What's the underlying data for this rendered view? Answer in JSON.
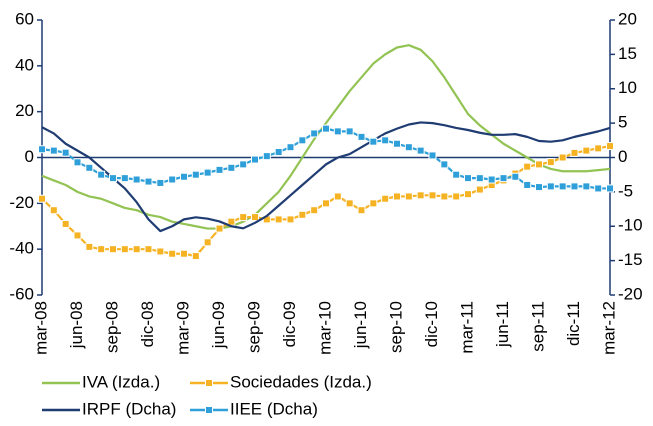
{
  "chart_data": {
    "type": "line",
    "categories": [
      "mar-08",
      null,
      null,
      "jun-08",
      null,
      null,
      "sep-08",
      null,
      null,
      "dic-08",
      null,
      null,
      "mar-09",
      null,
      null,
      "jun-09",
      null,
      null,
      "sep-09",
      null,
      null,
      "dic-09",
      null,
      null,
      "mar-10",
      null,
      null,
      "jun-10",
      null,
      null,
      "sep-10",
      null,
      null,
      "dic-10",
      null,
      null,
      "mar-11",
      null,
      null,
      "jun-11",
      null,
      null,
      "sep-11",
      null,
      null,
      "dic-11",
      null,
      null,
      "mar-12"
    ],
    "ylim": [
      -60,
      60
    ],
    "yticks": [
      -60,
      -40,
      -20,
      0,
      20,
      40,
      60
    ],
    "y2lim": [
      -20,
      20
    ],
    "y2ticks": [
      -20,
      -15,
      -10,
      -5,
      0,
      5,
      10,
      15,
      20
    ],
    "series": [
      {
        "name": "IVA (Izda.)",
        "color": "#92c353",
        "marker": "none",
        "values": [
          -8,
          -10,
          -12,
          -15,
          -17,
          -18,
          -20,
          -22,
          -23,
          -25,
          -26,
          -28,
          -29,
          -30,
          -31,
          -31,
          -30,
          -28,
          -25,
          -20,
          -15,
          -8,
          0,
          8,
          15,
          22,
          29,
          35,
          41,
          45,
          48,
          49,
          47,
          42,
          35,
          27,
          19,
          14,
          10,
          6,
          3,
          0,
          -3,
          -5,
          -6,
          -6,
          -6,
          -5.5,
          -5
        ]
      },
      {
        "name": "Sociedades (Izda.)",
        "color": "#f5b324",
        "marker": "square",
        "values": [
          -18,
          -23,
          -29,
          -34,
          -39,
          -40,
          -40,
          -40,
          -40,
          -40,
          -41,
          -42,
          -42,
          -43,
          -37,
          -31,
          -28,
          -26,
          -26,
          -27,
          -27,
          -27,
          -25,
          -23,
          -20,
          -17,
          -20,
          -23,
          -20,
          -18,
          -17,
          -17,
          -16.5,
          -16.5,
          -17,
          -17,
          -16,
          -14,
          -12,
          -10,
          -7,
          -4,
          -3,
          -2,
          0,
          2,
          3,
          4,
          5
        ]
      },
      {
        "name": "IRPF (Dcha)",
        "color": "#1f3c73",
        "marker": "none",
        "axis": "y2",
        "values": [
          4.4,
          3.5,
          2,
          1,
          0,
          -1.5,
          -3,
          -4.5,
          -6.5,
          -9,
          -10.7,
          -10,
          -9,
          -8.7,
          -8.9,
          -9.3,
          -10,
          -10.3,
          -9.5,
          -8.5,
          -7,
          -5.5,
          -4,
          -2.5,
          -1,
          0,
          0.5,
          1.5,
          2.5,
          3.5,
          4.2,
          4.8,
          5.1,
          5,
          4.7,
          4.3,
          4,
          3.6,
          3.3,
          3.3,
          3.4,
          3,
          2.4,
          2.3,
          2.5,
          3,
          3.4,
          3.8,
          4.3
        ]
      },
      {
        "name": "IIEE (Dcha)",
        "color": "#2e9fd8",
        "marker": "square",
        "axis": "y2",
        "values": [
          1.2,
          1,
          0.7,
          -0.7,
          -1.5,
          -2.5,
          -3,
          -3,
          -3.2,
          -3.5,
          -3.7,
          -3.2,
          -2.8,
          -2.5,
          -2.2,
          -1.8,
          -1.5,
          -1,
          -0.3,
          0.2,
          0.8,
          1.5,
          2.5,
          3.5,
          4.2,
          3.8,
          3.8,
          3,
          2.3,
          2.5,
          2,
          1.5,
          1,
          0.3,
          -1,
          -2.5,
          -3,
          -3,
          -3.2,
          -3,
          -2.8,
          -4,
          -4.3,
          -4.2,
          -4.2,
          -4.2,
          -4.2,
          -4.5,
          -4.5
        ]
      }
    ]
  }
}
